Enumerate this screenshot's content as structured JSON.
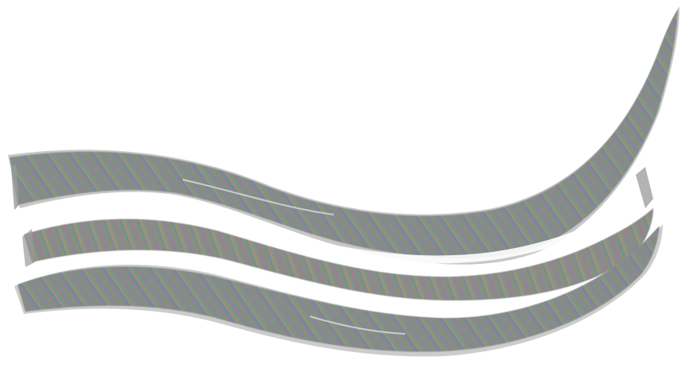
{
  "scene": {
    "background_color": "#ffffff",
    "bands": [
      {
        "id": "upper-ribbon",
        "base_color": "#8a8a88",
        "palette": [
          "#7a9a6a",
          "#9a7aa8",
          "#6a8aa0",
          "#a89a6a",
          "#8a8a8a",
          "#6aa08a"
        ]
      },
      {
        "id": "lower-ribbon",
        "base_color": "#8c8c8a",
        "palette": [
          "#7a9a6a",
          "#9a7aa8",
          "#6a8aa0",
          "#a89a6a",
          "#8a8a8a",
          "#6aa08a"
        ]
      }
    ],
    "highlight_color": "#e8e8e8",
    "edge_color": "#9a9a9a"
  }
}
